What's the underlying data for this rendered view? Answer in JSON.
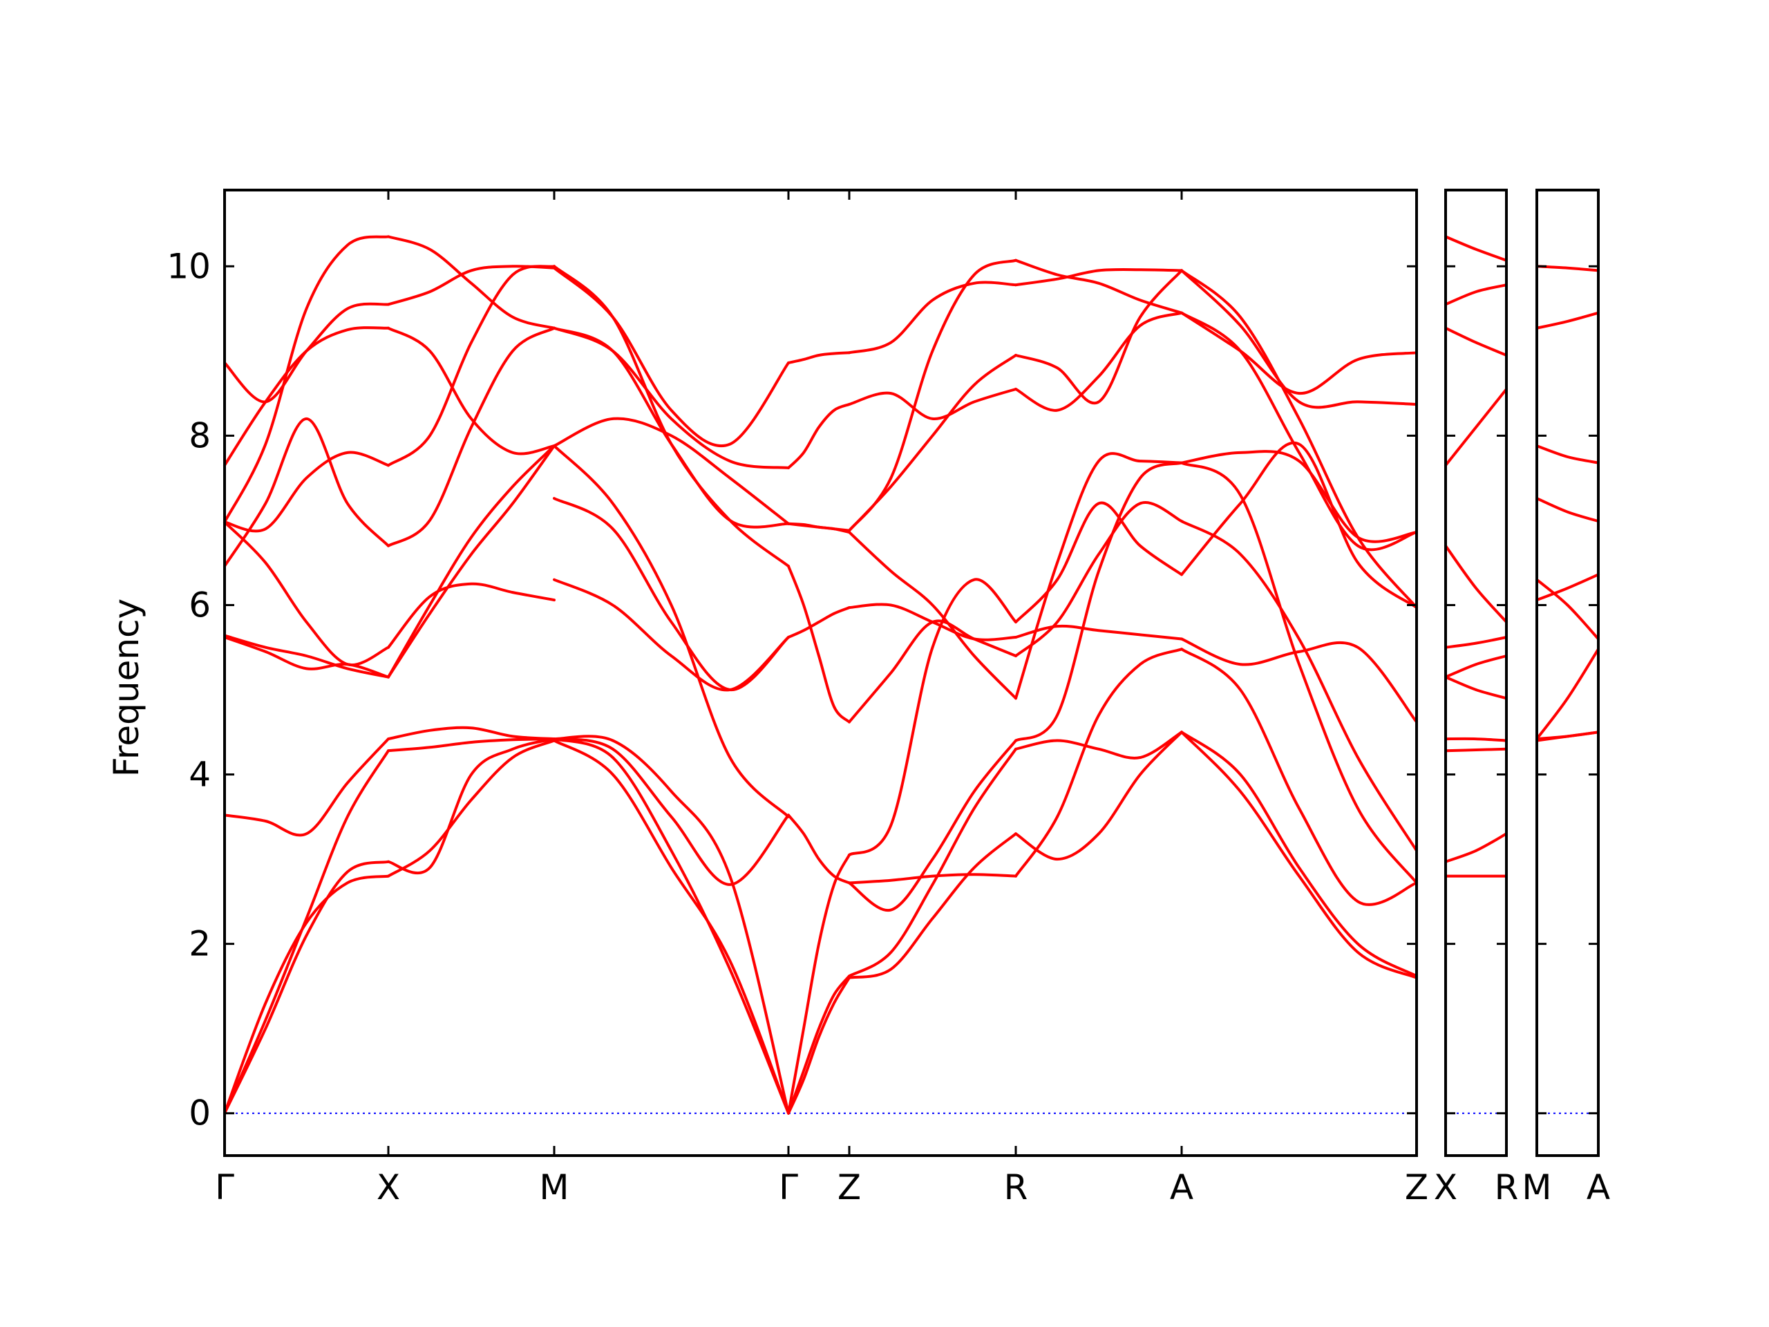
{
  "chart_data": {
    "type": "line",
    "title": "",
    "xlabel": "",
    "ylabel": "Frequency",
    "ylim": [
      -0.5,
      10.9
    ],
    "yticks": [
      0,
      2,
      4,
      6,
      8,
      10
    ],
    "grid": false,
    "colors": {
      "bands": "#ff0000",
      "zero_line": "#0000ff",
      "frame": "#000000"
    },
    "panels": [
      {
        "name": "main",
        "labels": [
          "Γ",
          "X",
          "M",
          "Γ",
          "Z",
          "R",
          "A",
          "Z"
        ],
        "segments": [
          {
            "from": "Γ",
            "to": "X",
            "bands": [
              [
                0,
                1.3,
                2.25,
                2.72,
                2.8
              ],
              [
                0,
                1.0,
                2.1,
                2.85,
                2.97
              ],
              [
                0,
                1.1,
                2.3,
                3.5,
                4.28
              ],
              [
                3.52,
                3.45,
                3.3,
                3.9,
                4.42
              ],
              [
                5.62,
                5.45,
                5.25,
                5.3,
                5.15
              ],
              [
                5.64,
                5.5,
                5.4,
                5.25,
                5.15
              ],
              [
                6.98,
                6.5,
                5.8,
                5.3,
                5.5
              ],
              [
                6.98,
                6.9,
                7.5,
                7.8,
                7.65
              ],
              [
                6.46,
                7.2,
                8.2,
                7.2,
                6.7
              ],
              [
                7.65,
                8.4,
                9.0,
                9.25,
                9.27
              ],
              [
                8.86,
                8.4,
                9.0,
                9.5,
                9.55
              ],
              [
                6.98,
                7.9,
                9.5,
                10.25,
                10.35
              ]
            ]
          },
          {
            "from": "X",
            "to": "M",
            "bands": [
              [
                2.8,
                3.1,
                3.7,
                4.2,
                4.4
              ],
              [
                2.97,
                2.9,
                4.0,
                4.3,
                4.42
              ],
              [
                4.28,
                4.32,
                4.38,
                4.41,
                4.42
              ],
              [
                4.42,
                4.52,
                4.55,
                4.45,
                4.42
              ],
              [
                5.15,
                5.9,
                6.6,
                7.2,
                7.88
              ],
              [
                5.15,
                6.0,
                6.8,
                7.4,
                7.88
              ],
              [
                5.5,
                6.1,
                6.25,
                6.15,
                6.06
              ],
              [
                7.65,
                8.0,
                9.1,
                9.9,
                10.0
              ],
              [
                6.7,
                7.0,
                8.1,
                9.0,
                9.27
              ],
              [
                9.27,
                9.0,
                8.2,
                7.8,
                7.88
              ],
              [
                9.55,
                9.7,
                9.95,
                10.0,
                9.98
              ],
              [
                10.35,
                10.2,
                9.8,
                9.4,
                9.27
              ]
            ]
          },
          {
            "from": "M",
            "to": "Γ",
            "bands": [
              [
                4.4,
                4.0,
                2.9,
                1.8,
                0.0
              ],
              [
                4.42,
                4.2,
                3.1,
                1.7,
                0.0
              ],
              [
                4.42,
                4.4,
                3.8,
                2.8,
                0.0
              ],
              [
                4.42,
                4.3,
                3.5,
                2.7,
                3.52
              ],
              [
                7.88,
                7.2,
                6.0,
                4.2,
                3.5
              ],
              [
                7.26,
                6.9,
                5.8,
                5.0,
                5.62
              ],
              [
                6.3,
                6.0,
                5.4,
                5.0,
                5.62
              ],
              [
                7.88,
                8.2,
                8.0,
                7.5,
                6.96
              ],
              [
                10.0,
                9.4,
                7.9,
                7.0,
                6.46
              ],
              [
                9.27,
                9.0,
                8.2,
                7.7,
                7.62
              ],
              [
                9.98,
                9.4,
                8.3,
                7.9,
                8.86
              ],
              [
                9.27,
                9.0,
                7.9,
                7.0,
                6.96
              ]
            ]
          },
          {
            "from": "Γ",
            "to": "Z",
            "bands": [
              [
                0.0,
                0.4,
                0.9,
                1.3,
                1.6
              ],
              [
                0.0,
                0.5,
                1.0,
                1.4,
                1.62
              ],
              [
                0.0,
                1.0,
                2.0,
                2.7,
                3.05
              ],
              [
                3.52,
                3.3,
                3.0,
                2.8,
                2.72
              ],
              [
                5.62,
                5.7,
                5.8,
                5.9,
                5.97
              ],
              [
                6.46,
                6.0,
                5.4,
                4.8,
                4.62
              ],
              [
                6.96,
                6.95,
                6.92,
                6.9,
                6.86
              ],
              [
                6.96,
                6.94,
                6.92,
                6.9,
                6.88
              ],
              [
                7.62,
                7.8,
                8.1,
                8.3,
                8.37
              ],
              [
                8.86,
                8.9,
                8.95,
                8.97,
                8.98
              ]
            ]
          },
          {
            "from": "Z",
            "to": "R",
            "bands": [
              [
                1.6,
                1.7,
                2.3,
                2.9,
                3.3
              ],
              [
                1.62,
                1.9,
                2.7,
                3.6,
                4.3
              ],
              [
                2.72,
                2.75,
                2.8,
                2.82,
                2.8
              ],
              [
                3.05,
                3.4,
                5.5,
                6.3,
                5.8
              ],
              [
                2.72,
                2.4,
                3.0,
                3.8,
                4.4
              ],
              [
                4.62,
                5.2,
                5.8,
                5.6,
                5.4
              ],
              [
                5.97,
                6.0,
                5.8,
                5.6,
                5.62
              ],
              [
                6.86,
                6.4,
                6.0,
                5.4,
                4.9
              ],
              [
                6.88,
                7.4,
                8.0,
                8.6,
                8.95
              ],
              [
                8.37,
                8.5,
                8.2,
                8.4,
                8.55
              ],
              [
                8.98,
                9.1,
                9.6,
                9.8,
                9.78
              ],
              [
                6.88,
                7.5,
                9.0,
                9.9,
                10.07
              ]
            ]
          },
          {
            "from": "R",
            "to": "A",
            "bands": [
              [
                3.3,
                3.0,
                3.3,
                4.0,
                4.5
              ],
              [
                4.3,
                4.4,
                4.3,
                4.2,
                4.5
              ],
              [
                2.8,
                3.5,
                4.7,
                5.3,
                5.48
              ],
              [
                4.4,
                4.7,
                6.4,
                7.5,
                7.68
              ],
              [
                5.4,
                5.8,
                6.6,
                7.2,
                6.99
              ],
              [
                5.62,
                5.75,
                5.7,
                5.65,
                5.6
              ],
              [
                5.8,
                6.3,
                7.2,
                6.7,
                6.36
              ],
              [
                4.9,
                6.5,
                7.7,
                7.7,
                7.68
              ],
              [
                8.95,
                8.8,
                8.4,
                9.4,
                9.95
              ],
              [
                8.55,
                8.3,
                8.7,
                9.3,
                9.45
              ],
              [
                9.78,
                9.85,
                9.95,
                9.96,
                9.95
              ],
              [
                10.07,
                9.9,
                9.8,
                9.6,
                9.45
              ]
            ]
          },
          {
            "from": "A",
            "to": "Z",
            "bands": [
              [
                4.5,
                3.8,
                2.8,
                1.9,
                1.6
              ],
              [
                4.5,
                4.0,
                2.9,
                2.0,
                1.62
              ],
              [
                5.48,
                5.0,
                3.6,
                2.5,
                2.72
              ],
              [
                7.68,
                7.3,
                5.3,
                3.6,
                2.72
              ],
              [
                6.99,
                6.6,
                5.6,
                4.2,
                3.1
              ],
              [
                5.6,
                5.3,
                5.45,
                5.5,
                4.62
              ],
              [
                6.36,
                7.2,
                7.9,
                6.5,
                5.97
              ],
              [
                7.68,
                7.8,
                7.7,
                6.8,
                6.86
              ],
              [
                9.95,
                9.3,
                8.4,
                8.4,
                8.37
              ],
              [
                9.45,
                9.0,
                8.5,
                8.9,
                8.98
              ],
              [
                9.95,
                9.4,
                8.2,
                6.8,
                5.97
              ],
              [
                9.45,
                9.0,
                7.8,
                6.7,
                6.86
              ]
            ]
          }
        ]
      },
      {
        "name": "X-R",
        "labels": [
          "X",
          "R"
        ],
        "segments": [
          {
            "from": "X",
            "to": "R",
            "bands": [
              [
                2.8,
                2.8,
                2.8
              ],
              [
                2.97,
                3.1,
                3.3
              ],
              [
                4.28,
                4.29,
                4.3
              ],
              [
                4.42,
                4.42,
                4.4
              ],
              [
                5.15,
                5.0,
                4.9
              ],
              [
                5.15,
                5.3,
                5.4
              ],
              [
                5.5,
                5.55,
                5.62
              ],
              [
                6.7,
                6.2,
                5.8
              ],
              [
                7.65,
                8.1,
                8.55
              ],
              [
                9.27,
                9.1,
                8.95
              ],
              [
                9.55,
                9.7,
                9.78
              ],
              [
                10.35,
                10.2,
                10.07
              ]
            ]
          }
        ]
      },
      {
        "name": "M-A",
        "labels": [
          "M",
          "A"
        ],
        "segments": [
          {
            "from": "M",
            "to": "A",
            "bands": [
              [
                4.4,
                4.45,
                4.5
              ],
              [
                4.42,
                4.45,
                4.5
              ],
              [
                4.42,
                4.9,
                5.48
              ],
              [
                7.88,
                7.75,
                7.68
              ],
              [
                7.26,
                7.1,
                6.99
              ],
              [
                6.06,
                6.2,
                6.36
              ],
              [
                6.3,
                6.0,
                5.6
              ],
              [
                9.27,
                9.35,
                9.45
              ],
              [
                10.0,
                9.98,
                9.95
              ]
            ]
          }
        ]
      }
    ]
  }
}
